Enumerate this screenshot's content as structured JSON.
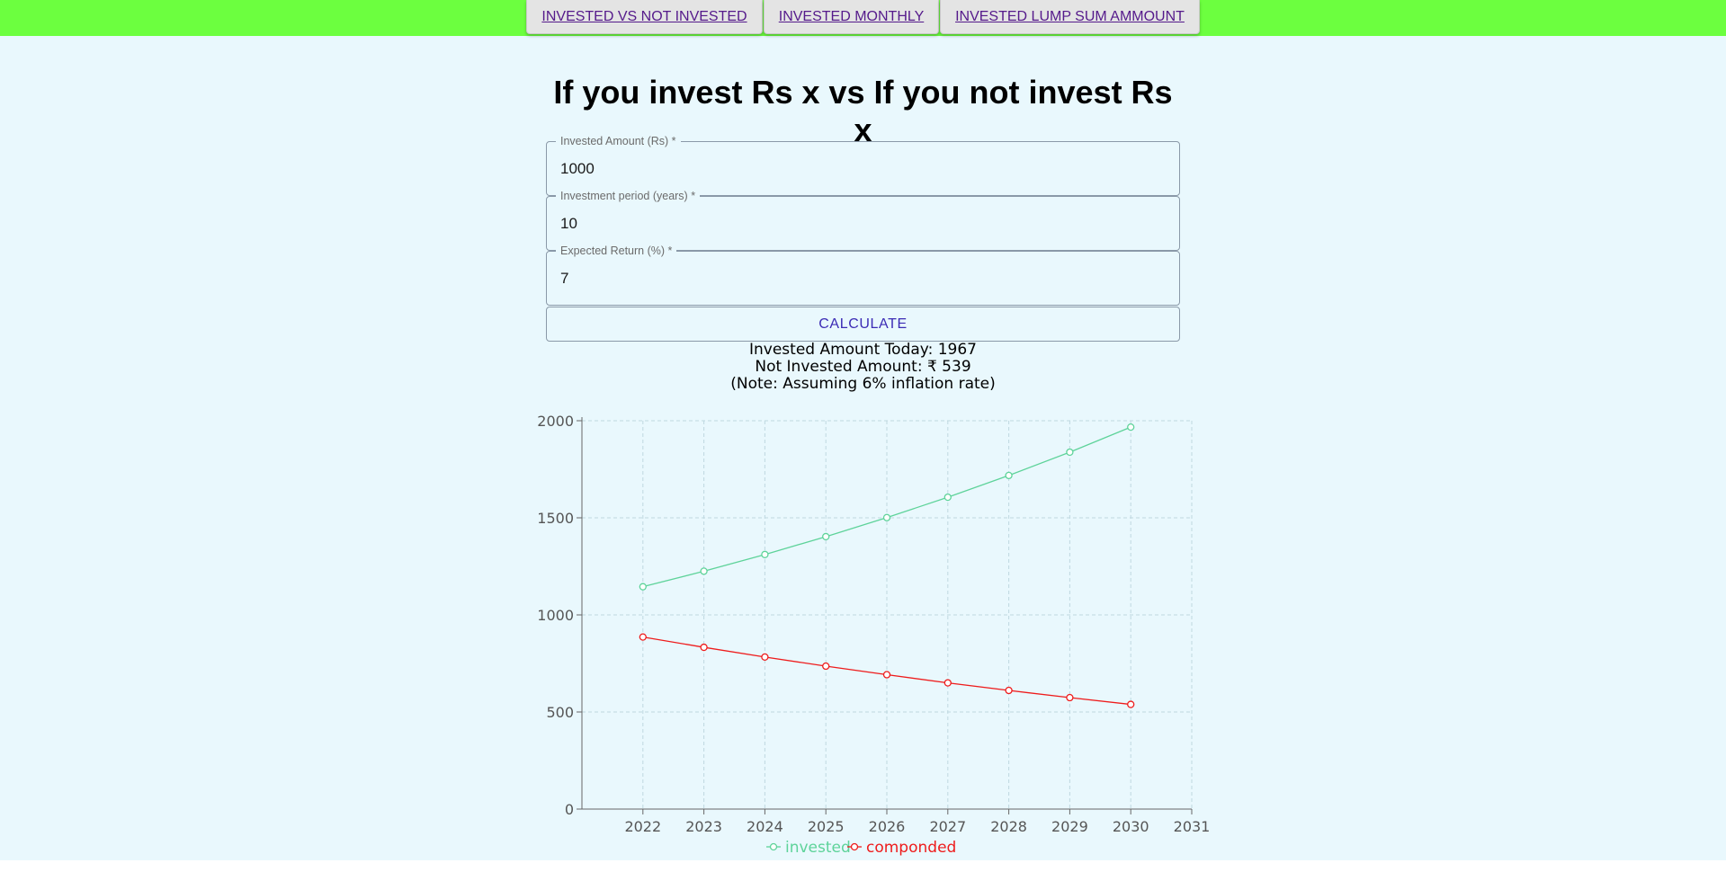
{
  "nav": {
    "tabs": [
      {
        "label": "INVESTED VS NOT INVESTED"
      },
      {
        "label": "INVESTED MONTHLY"
      },
      {
        "label": "INVESTED LUMP SUM AMMOUNT"
      }
    ]
  },
  "page": {
    "title": "If you invest Rs x vs If you not invest Rs x"
  },
  "form": {
    "invested_amount": {
      "label": "Invested Amount (Rs) *",
      "value": "1000"
    },
    "investment_period": {
      "label": "Investment period (years) *",
      "value": "10"
    },
    "expected_return": {
      "label": "Expected Return (%) *",
      "value": "7"
    },
    "calculate_label": "CALCULATE"
  },
  "results": {
    "invested_today": "Invested Amount Today: 1967",
    "not_invested": "Not Invested Amount: ₹ 539",
    "note": "(Note: Assuming 6% inflation rate)"
  },
  "colors": {
    "invested": "#5ed39a",
    "componded": "#ee1c1c",
    "grid": "#bfd8e0",
    "axis": "#666666"
  },
  "chart_data": {
    "type": "line",
    "x": [
      2022,
      2023,
      2024,
      2025,
      2026,
      2027,
      2028,
      2029,
      2030
    ],
    "xticks": [
      "2022",
      "2023",
      "2024",
      "2025",
      "2026",
      "2027",
      "2028",
      "2029",
      "2030",
      "2031"
    ],
    "yticks": [
      "0",
      "500",
      "1000",
      "1500",
      "2000"
    ],
    "xlim": [
      2021,
      2031
    ],
    "ylim": [
      0,
      2000
    ],
    "grid": true,
    "legend_position": "bottom-center",
    "series": [
      {
        "name": "invested",
        "values": [
          1145,
          1225,
          1311,
          1403,
          1501,
          1606,
          1718,
          1838,
          1967
        ]
      },
      {
        "name": "componded",
        "values": [
          886,
          833,
          783,
          736,
          692,
          650,
          611,
          574,
          539
        ]
      }
    ]
  }
}
